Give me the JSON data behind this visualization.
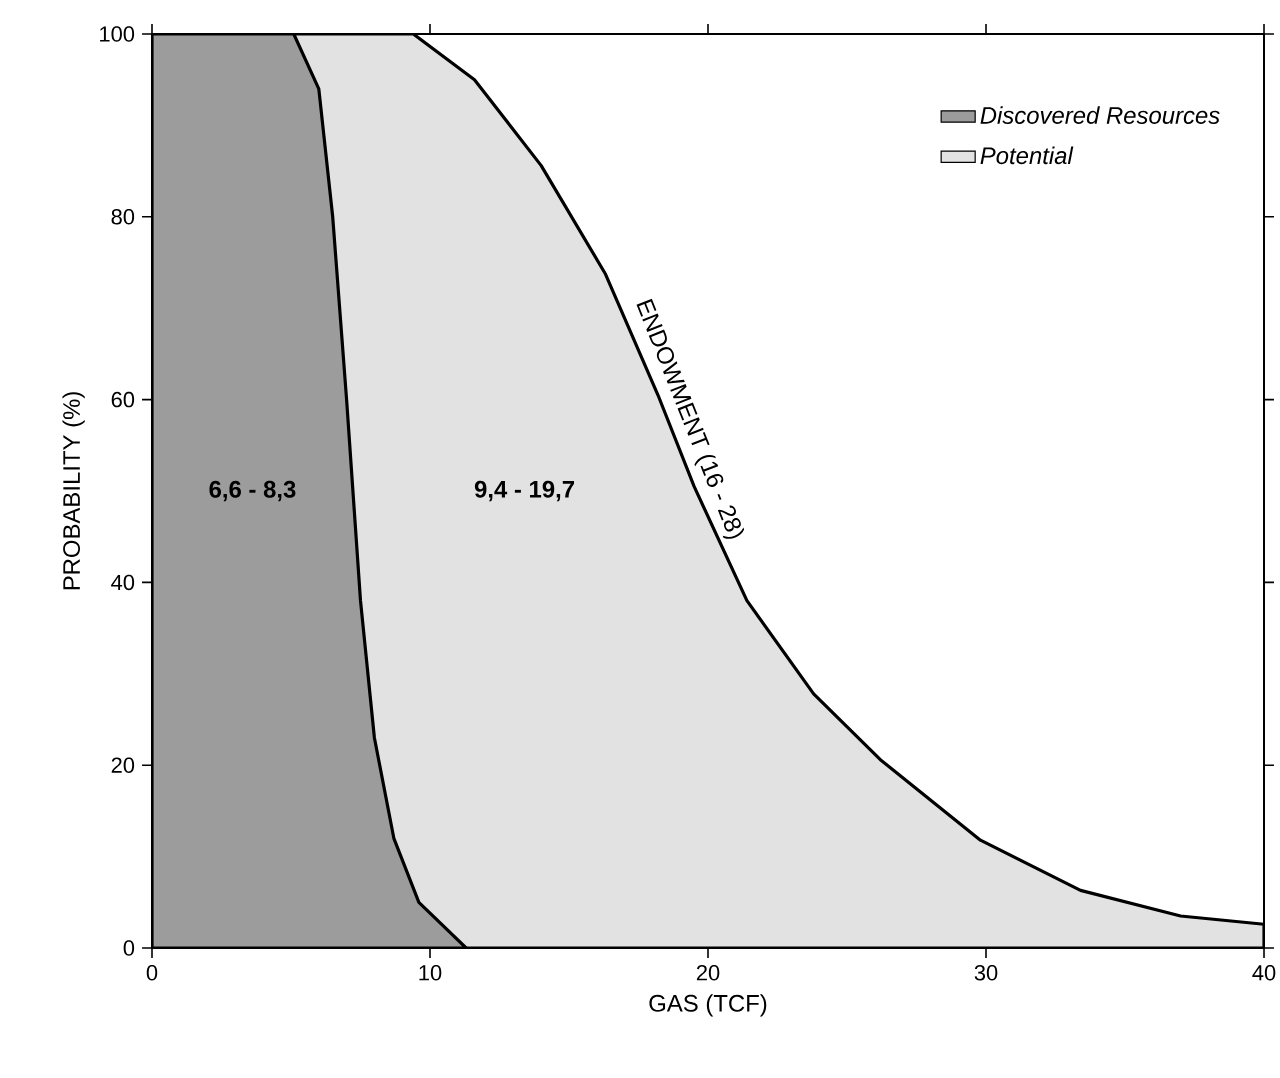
{
  "chart_data": {
    "type": "area",
    "xlabel": "GAS (TCF)",
    "ylabel": "PROBABILITY (%)",
    "xlim": [
      0,
      40
    ],
    "ylim": [
      0,
      100
    ],
    "xticks": [
      0,
      10,
      20,
      30,
      40
    ],
    "yticks": [
      0,
      20,
      40,
      60,
      80,
      100
    ],
    "legend": "top right",
    "grid": false,
    "series": [
      {
        "name": "Discovered Resources",
        "color": "#9c9c9c",
        "x": [
          0,
          5.1,
          6.0,
          6.5,
          7.0,
          7.5,
          8.0,
          8.7,
          9.6,
          11.3
        ],
        "values": [
          100,
          100,
          94,
          80,
          60,
          38,
          23,
          12,
          5,
          0
        ]
      },
      {
        "name": "Potential",
        "color": "#e2e2e2",
        "x": [
          0,
          9.4,
          11.6,
          14,
          16.3,
          18.2,
          19.5,
          21.4,
          23.8,
          26.2,
          29.8,
          33.4,
          37,
          40
        ],
        "values": [
          100,
          100,
          95,
          85.6,
          73.8,
          60.5,
          50.5,
          38,
          27.8,
          20.6,
          11.8,
          6.3,
          3.5,
          2.6
        ]
      }
    ],
    "annotations": [
      "6,6 - 8,3",
      "9,4 - 19,7",
      "ENDOWMENT (16 - 28)"
    ]
  }
}
